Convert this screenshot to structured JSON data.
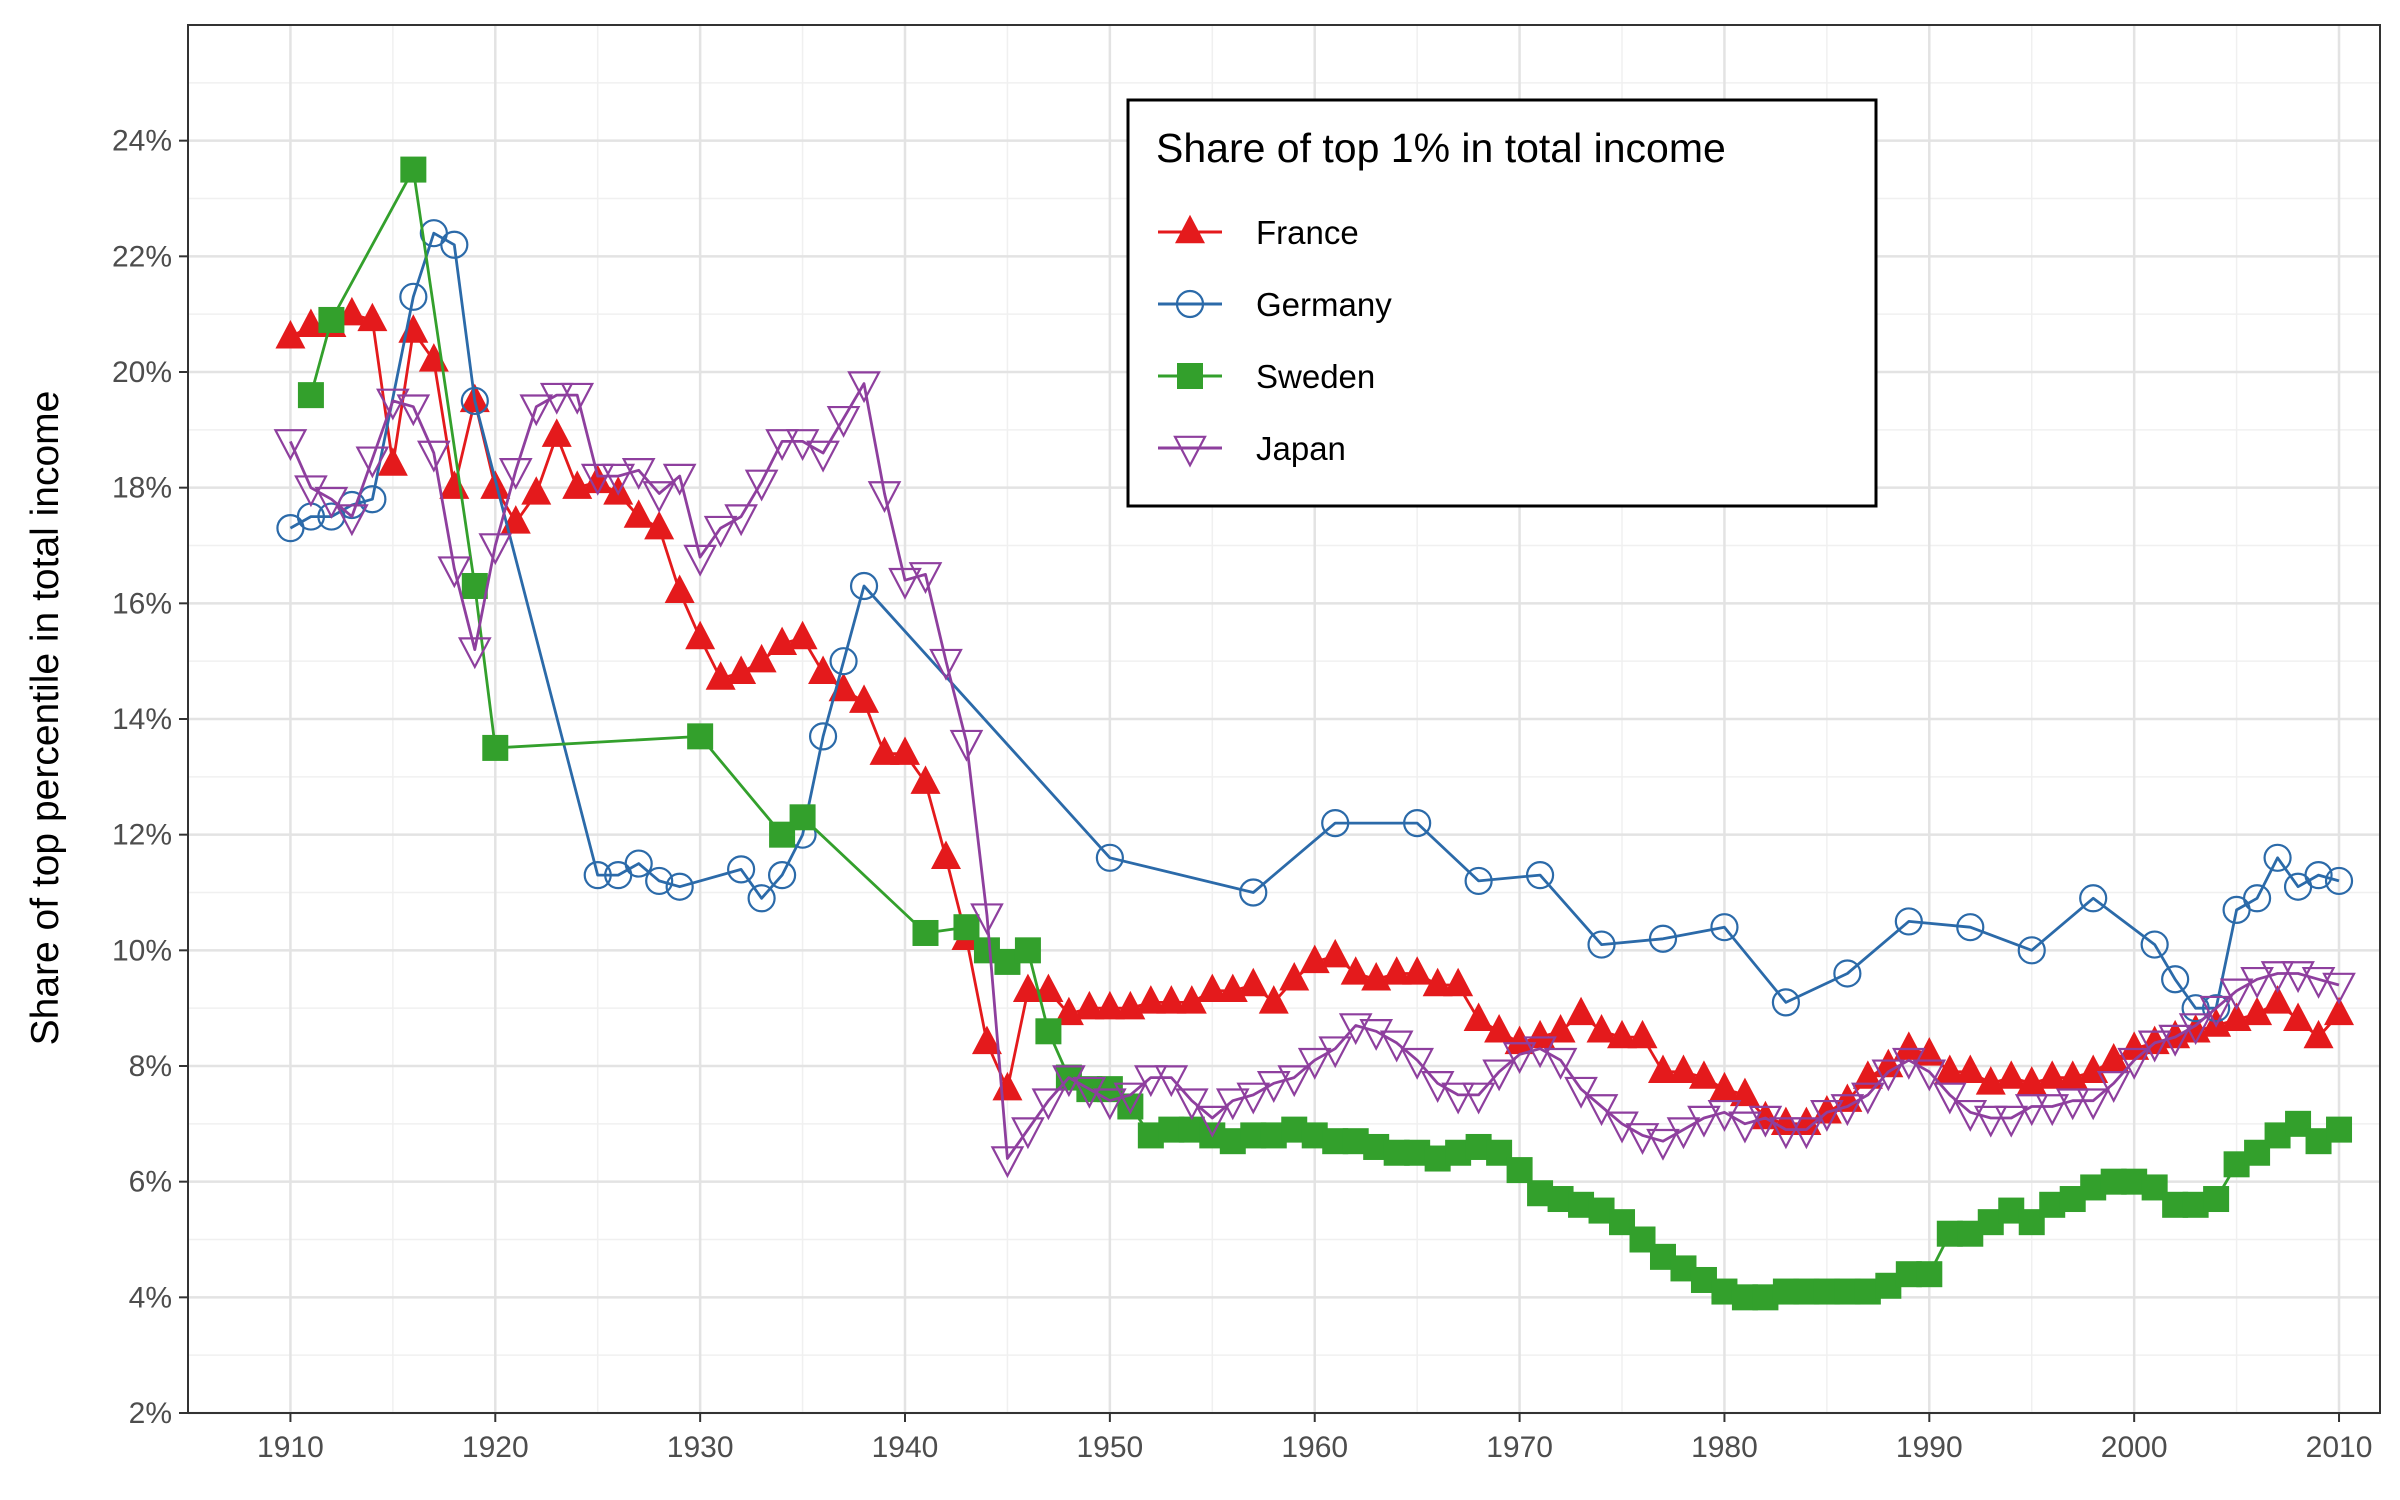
{
  "chart_data": {
    "type": "line",
    "title": "",
    "xlabel": "",
    "ylabel": "Share of top percentile in total income",
    "xlim": [
      1905,
      2012
    ],
    "ylim": [
      2,
      26
    ],
    "x_ticks": [
      1910,
      1920,
      1930,
      1940,
      1950,
      1960,
      1970,
      1980,
      1990,
      2000,
      2010
    ],
    "x_tick_labels": [
      "1910",
      "1920",
      "1930",
      "1940",
      "1950",
      "1960",
      "1970",
      "1980",
      "1990",
      "2000",
      "2010"
    ],
    "y_ticks": [
      2,
      4,
      6,
      8,
      10,
      12,
      14,
      16,
      18,
      20,
      22,
      24
    ],
    "y_tick_labels": [
      "2%",
      "4%",
      "6%",
      "8%",
      "10%",
      "12%",
      "14%",
      "16%",
      "18%",
      "20%",
      "22%",
      "24%"
    ],
    "grid": true,
    "legend": {
      "title": "Share of top 1% in total income",
      "position": "top-right"
    },
    "series": [
      {
        "name": "France",
        "color": "#e41a1c",
        "marker": "triangle-up-filled",
        "x": [
          1910,
          1911,
          1912,
          1913,
          1914,
          1915,
          1916,
          1917,
          1918,
          1919,
          1920,
          1921,
          1922,
          1923,
          1924,
          1925,
          1926,
          1927,
          1928,
          1929,
          1930,
          1931,
          1932,
          1933,
          1934,
          1935,
          1936,
          1937,
          1938,
          1939,
          1940,
          1941,
          1942,
          1943,
          1944,
          1945,
          1946,
          1947,
          1948,
          1949,
          1950,
          1951,
          1952,
          1953,
          1954,
          1955,
          1956,
          1957,
          1958,
          1959,
          1960,
          1961,
          1962,
          1963,
          1964,
          1965,
          1966,
          1967,
          1968,
          1969,
          1970,
          1971,
          1972,
          1973,
          1974,
          1975,
          1976,
          1977,
          1978,
          1979,
          1980,
          1981,
          1982,
          1983,
          1984,
          1985,
          1986,
          1987,
          1988,
          1989,
          1990,
          1991,
          1992,
          1993,
          1994,
          1995,
          1996,
          1997,
          1998,
          1999,
          2000,
          2001,
          2002,
          2003,
          2004,
          2005,
          2006,
          2007,
          2008,
          2009,
          2010
        ],
        "y": [
          20.6,
          20.8,
          20.8,
          21.0,
          20.9,
          18.4,
          20.7,
          20.2,
          18.0,
          19.5,
          18.0,
          17.4,
          17.9,
          18.9,
          18.0,
          18.1,
          17.9,
          17.5,
          17.3,
          16.2,
          15.4,
          14.7,
          14.8,
          15.0,
          15.3,
          15.4,
          14.8,
          14.5,
          14.3,
          13.4,
          13.4,
          12.9,
          11.6,
          10.2,
          8.4,
          7.6,
          9.3,
          9.3,
          8.9,
          9.0,
          9.0,
          9.0,
          9.1,
          9.1,
          9.1,
          9.3,
          9.3,
          9.4,
          9.1,
          9.5,
          9.8,
          9.9,
          9.6,
          9.5,
          9.6,
          9.6,
          9.4,
          9.4,
          8.8,
          8.6,
          8.4,
          8.5,
          8.6,
          8.9,
          8.6,
          8.5,
          8.5,
          7.9,
          7.9,
          7.8,
          7.6,
          7.5,
          7.1,
          7.0,
          7.0,
          7.2,
          7.4,
          7.8,
          8.0,
          8.3,
          8.2,
          7.9,
          7.9,
          7.7,
          7.8,
          7.7,
          7.8,
          7.8,
          7.9,
          8.1,
          8.3,
          8.4,
          8.5,
          8.6,
          8.7,
          8.8,
          8.9,
          9.1,
          8.8,
          8.5,
          8.9
        ]
      },
      {
        "name": "Germany",
        "color": "#2b6aa9",
        "marker": "circle-open",
        "x": [
          1910,
          1911,
          1912,
          1913,
          1914,
          1916,
          1917,
          1918,
          1919,
          1925,
          1926,
          1927,
          1928,
          1929,
          1932,
          1933,
          1934,
          1935,
          1936,
          1937,
          1938,
          1950,
          1957,
          1961,
          1965,
          1968,
          1971,
          1974,
          1977,
          1980,
          1983,
          1986,
          1989,
          1992,
          1995,
          1998,
          2001,
          2002,
          2003,
          2004,
          2005,
          2006,
          2007,
          2008,
          2009,
          2010
        ],
        "y": [
          17.3,
          17.5,
          17.5,
          17.7,
          17.8,
          21.3,
          22.4,
          22.2,
          19.5,
          11.3,
          11.3,
          11.5,
          11.2,
          11.1,
          11.4,
          10.9,
          11.3,
          12.0,
          13.7,
          15.0,
          16.3,
          11.6,
          11.0,
          12.2,
          12.2,
          11.2,
          11.3,
          10.1,
          10.2,
          10.4,
          9.1,
          9.6,
          10.5,
          10.4,
          10.0,
          10.9,
          10.1,
          9.5,
          9.0,
          9.0,
          10.7,
          10.9,
          11.6,
          11.1,
          11.3,
          11.2
        ]
      },
      {
        "name": "Sweden",
        "color": "#33a02c",
        "marker": "square-filled",
        "x": [
          1911,
          1912,
          1916,
          1919,
          1920,
          1930,
          1934,
          1935,
          1941,
          1943,
          1944,
          1945,
          1946,
          1947,
          1948,
          1949,
          1950,
          1951,
          1952,
          1953,
          1954,
          1955,
          1956,
          1957,
          1958,
          1959,
          1960,
          1961,
          1962,
          1963,
          1964,
          1965,
          1966,
          1967,
          1968,
          1969,
          1970,
          1971,
          1972,
          1973,
          1974,
          1975,
          1976,
          1977,
          1978,
          1979,
          1980,
          1981,
          1982,
          1983,
          1984,
          1985,
          1986,
          1987,
          1988,
          1989,
          1990,
          1991,
          1992,
          1993,
          1994,
          1995,
          1996,
          1997,
          1998,
          1999,
          2000,
          2001,
          2002,
          2003,
          2004,
          2005,
          2006,
          2007,
          2008,
          2009,
          2010
        ],
        "y": [
          19.6,
          20.9,
          23.5,
          16.3,
          13.5,
          13.7,
          12.0,
          12.3,
          10.3,
          10.4,
          10.0,
          9.8,
          10.0,
          8.6,
          7.8,
          7.6,
          7.6,
          7.3,
          6.8,
          6.9,
          6.9,
          6.8,
          6.7,
          6.8,
          6.8,
          6.9,
          6.8,
          6.7,
          6.7,
          6.6,
          6.5,
          6.5,
          6.4,
          6.5,
          6.6,
          6.5,
          6.2,
          5.8,
          5.7,
          5.6,
          5.5,
          5.3,
          5.0,
          4.7,
          4.5,
          4.3,
          4.1,
          4.0,
          4.0,
          4.1,
          4.1,
          4.1,
          4.1,
          4.1,
          4.2,
          4.4,
          4.4,
          5.1,
          5.1,
          5.3,
          5.5,
          5.3,
          5.6,
          5.7,
          5.9,
          6.0,
          6.0,
          5.9,
          5.6,
          5.6,
          5.7,
          6.3,
          6.5,
          6.8,
          7.0,
          6.7,
          6.9
        ]
      },
      {
        "name": "Japan",
        "color": "#8e3f9e",
        "marker": "triangle-down-open",
        "x": [
          1910,
          1911,
          1912,
          1913,
          1914,
          1915,
          1916,
          1917,
          1918,
          1919,
          1920,
          1921,
          1922,
          1923,
          1924,
          1925,
          1926,
          1927,
          1928,
          1929,
          1930,
          1931,
          1932,
          1933,
          1934,
          1935,
          1936,
          1937,
          1938,
          1939,
          1940,
          1941,
          1942,
          1943,
          1944,
          1945,
          1946,
          1947,
          1948,
          1949,
          1950,
          1951,
          1952,
          1953,
          1954,
          1955,
          1956,
          1957,
          1958,
          1959,
          1960,
          1961,
          1962,
          1963,
          1964,
          1965,
          1966,
          1967,
          1968,
          1969,
          1970,
          1971,
          1972,
          1973,
          1974,
          1975,
          1976,
          1977,
          1978,
          1979,
          1980,
          1981,
          1982,
          1983,
          1984,
          1985,
          1986,
          1987,
          1988,
          1989,
          1990,
          1991,
          1992,
          1993,
          1994,
          1995,
          1996,
          1997,
          1998,
          1999,
          2000,
          2001,
          2002,
          2003,
          2004,
          2005,
          2006,
          2007,
          2008,
          2009,
          2010
        ],
        "y": [
          18.8,
          18.0,
          17.8,
          17.5,
          18.5,
          19.5,
          19.4,
          18.6,
          16.6,
          15.2,
          17.0,
          18.3,
          19.4,
          19.6,
          19.6,
          18.2,
          18.2,
          18.3,
          17.9,
          18.2,
          16.8,
          17.3,
          17.5,
          18.1,
          18.8,
          18.8,
          18.6,
          19.2,
          19.8,
          17.9,
          16.4,
          16.5,
          15.0,
          13.6,
          10.6,
          6.4,
          6.9,
          7.4,
          7.8,
          7.6,
          7.4,
          7.5,
          7.8,
          7.8,
          7.4,
          7.1,
          7.4,
          7.5,
          7.7,
          7.8,
          8.1,
          8.3,
          8.7,
          8.6,
          8.4,
          8.1,
          7.7,
          7.5,
          7.5,
          7.9,
          8.2,
          8.3,
          8.1,
          7.6,
          7.3,
          7.0,
          6.8,
          6.7,
          6.9,
          7.1,
          7.2,
          7.0,
          7.1,
          6.9,
          6.9,
          7.2,
          7.3,
          7.5,
          7.9,
          8.1,
          7.9,
          7.5,
          7.2,
          7.1,
          7.1,
          7.3,
          7.3,
          7.4,
          7.4,
          7.7,
          8.1,
          8.4,
          8.5,
          8.7,
          9.0,
          9.3,
          9.5,
          9.6,
          9.6,
          9.5,
          9.4
        ]
      }
    ]
  }
}
